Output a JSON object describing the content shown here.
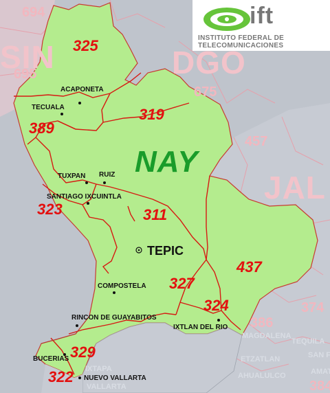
{
  "logo": {
    "brand": "ift",
    "line1": "INSTITUTO FEDERAL DE",
    "line2": "TELECOMUNICACIONES"
  },
  "states": {
    "main": "NAY",
    "sin": "SIN",
    "dgo": "DGO",
    "jal": "JAL"
  },
  "area_codes": {
    "c325": "325",
    "c319": "319",
    "c389": "389",
    "c323": "323",
    "c311": "311",
    "c327": "327",
    "c437": "437",
    "c324": "324",
    "c329": "329",
    "c322": "322"
  },
  "outside_codes": {
    "c694": "694",
    "c695": "695",
    "c675": "675",
    "c457": "457",
    "c374": "374",
    "c386": "386",
    "c384": "384"
  },
  "towns": {
    "acaponeta": "ACAPONETA",
    "tecuala": "TECUALA",
    "tuxpan": "TUXPAN",
    "ruiz": "RUIZ",
    "santiago": "SANTIAGO IXCUINTLA",
    "tepic": "TEPIC",
    "compostela": "COMPOSTELA",
    "rincon": "RINCON DE GUAYABITOS",
    "ixtlan": "IXTLAN DEL RIO",
    "bucerias": "BUCERIAS",
    "nuevo_vallarta": "NUEVO VALLARTA"
  },
  "outside_towns": {
    "magdalena": "MAGDALENA",
    "tequila": "TEQUILA",
    "etzatlan": "ETZATLAN",
    "san_f": "SAN F",
    "ahualulco": "AHUALULCO",
    "ixtapa": "IXTAPA",
    "vallarta": "VALLARTA",
    "amatitan": "AMATITAN"
  },
  "colors": {
    "nayarit": "#b4ec8e",
    "neighbors": "#bfc4cc",
    "borders": "#d61a12",
    "logo_green": "#66c43a"
  }
}
